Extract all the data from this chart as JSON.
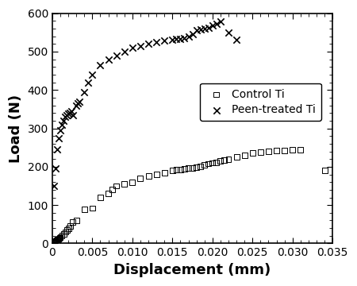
{
  "control_x": [
    0.0001,
    0.0002,
    0.0003,
    0.0004,
    0.0005,
    0.0006,
    0.0007,
    0.0008,
    0.0009,
    0.001,
    0.0012,
    0.0014,
    0.0016,
    0.0018,
    0.002,
    0.0022,
    0.0025,
    0.003,
    0.004,
    0.005,
    0.006,
    0.007,
    0.0075,
    0.008,
    0.009,
    0.01,
    0.011,
    0.012,
    0.013,
    0.014,
    0.015,
    0.0155,
    0.016,
    0.0165,
    0.017,
    0.0175,
    0.018,
    0.0185,
    0.019,
    0.0195,
    0.02,
    0.0205,
    0.021,
    0.0215,
    0.022,
    0.023,
    0.024,
    0.025,
    0.026,
    0.027,
    0.028,
    0.029,
    0.03,
    0.031,
    0.034
  ],
  "control_y": [
    2,
    3,
    4,
    5,
    6,
    8,
    10,
    12,
    14,
    16,
    20,
    25,
    30,
    35,
    40,
    45,
    55,
    60,
    88,
    92,
    120,
    130,
    140,
    150,
    155,
    160,
    170,
    175,
    180,
    185,
    190,
    192,
    193,
    194,
    196,
    197,
    198,
    200,
    205,
    208,
    210,
    212,
    215,
    218,
    220,
    225,
    230,
    235,
    238,
    240,
    242,
    243,
    244,
    245,
    190
  ],
  "peen_x": [
    0.0002,
    0.0004,
    0.0006,
    0.0008,
    0.001,
    0.0012,
    0.0014,
    0.0016,
    0.0018,
    0.002,
    0.0022,
    0.0024,
    0.0026,
    0.003,
    0.0032,
    0.0034,
    0.004,
    0.0045,
    0.005,
    0.006,
    0.007,
    0.008,
    0.009,
    0.01,
    0.011,
    0.012,
    0.013,
    0.014,
    0.015,
    0.0155,
    0.016,
    0.0165,
    0.017,
    0.0175,
    0.018,
    0.0185,
    0.019,
    0.0195,
    0.02,
    0.0205,
    0.021,
    0.022,
    0.023
  ],
  "peen_y": [
    150,
    195,
    245,
    275,
    295,
    310,
    320,
    330,
    335,
    338,
    340,
    345,
    335,
    360,
    365,
    370,
    395,
    420,
    440,
    465,
    480,
    490,
    500,
    510,
    515,
    520,
    525,
    528,
    530,
    532,
    533,
    534,
    540,
    545,
    555,
    558,
    560,
    562,
    568,
    572,
    578,
    550,
    530
  ],
  "xlabel": "Displacement (mm)",
  "ylabel": "Load (N)",
  "xlim": [
    0,
    0.035
  ],
  "ylim": [
    0,
    600
  ],
  "xticks": [
    0,
    0.005,
    0.01,
    0.015,
    0.02,
    0.025,
    0.03,
    0.035
  ],
  "yticks": [
    0,
    100,
    200,
    300,
    400,
    500,
    600
  ],
  "legend_labels": [
    "Control Ti",
    "Peen-treated Ti"
  ],
  "control_marker": "s",
  "peen_marker": "x",
  "marker_size_control": 25,
  "marker_size_peen": 36,
  "marker_color": "black",
  "bg_color": "white",
  "xlabel_fontsize": 13,
  "ylabel_fontsize": 13,
  "tick_labelsize": 10,
  "legend_fontsize": 10
}
